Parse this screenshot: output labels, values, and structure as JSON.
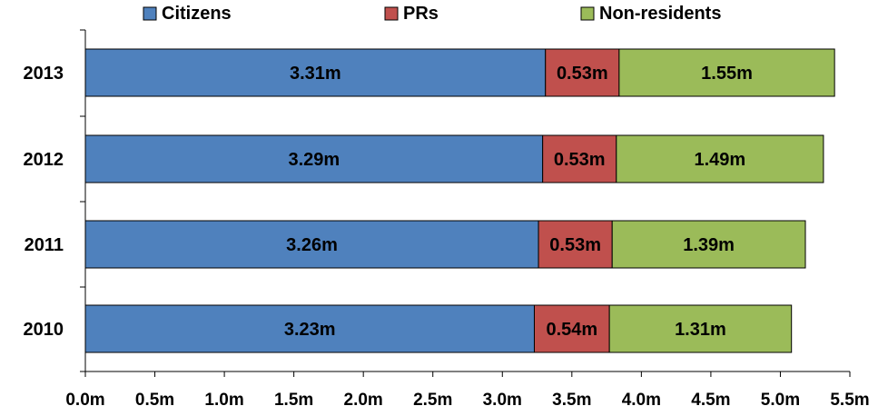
{
  "chart_data": {
    "type": "bar",
    "orientation": "horizontal",
    "stacked": true,
    "categories": [
      "2013",
      "2012",
      "2011",
      "2010"
    ],
    "series": [
      {
        "name": "Citizens",
        "color": "#4f81bd",
        "values": [
          3.31,
          3.29,
          3.26,
          3.23
        ],
        "labels": [
          "3.31m",
          "3.29m",
          "3.26m",
          "3.23m"
        ]
      },
      {
        "name": "PRs",
        "color": "#c0504d",
        "values": [
          0.53,
          0.53,
          0.53,
          0.54
        ],
        "labels": [
          "0.53m",
          "0.53m",
          "0.53m",
          "0.54m"
        ]
      },
      {
        "name": "Non-residents",
        "color": "#9bbb59",
        "values": [
          1.55,
          1.49,
          1.39,
          1.31
        ],
        "labels": [
          "1.55m",
          "1.49m",
          "1.39m",
          "1.31m"
        ]
      }
    ],
    "xlim": [
      0,
      5.5
    ],
    "xticks": [
      0,
      0.5,
      1.0,
      1.5,
      2.0,
      2.5,
      3.0,
      3.5,
      4.0,
      4.5,
      5.0,
      5.5
    ],
    "xtick_labels": [
      "0.0m",
      "0.5m",
      "1.0m",
      "1.5m",
      "2.0m",
      "2.5m",
      "3.0m",
      "3.5m",
      "4.0m",
      "4.5m",
      "5.0m",
      "5.5m"
    ],
    "title": "",
    "xlabel": "",
    "ylabel": "",
    "grid": false,
    "legend": "top"
  }
}
